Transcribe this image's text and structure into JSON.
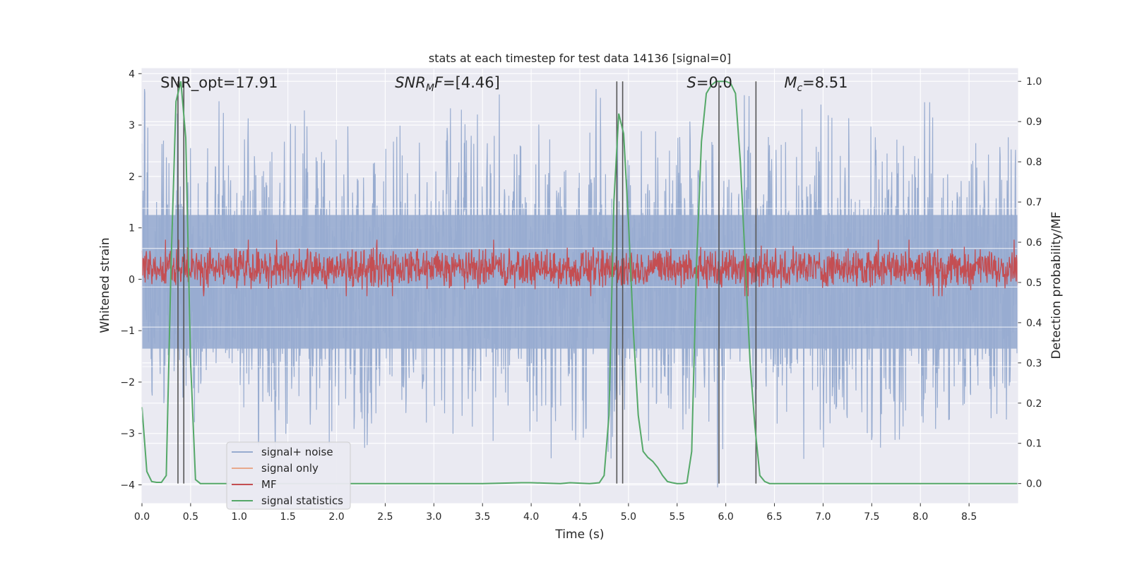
{
  "chart_data": {
    "type": "line",
    "title": "stats at each timestep for test data 14136 [signal=0]",
    "xlabel": "Time (s)",
    "ylabel": "Whitened strain",
    "y2label": "Detection probability/MF",
    "xlim": [
      0.0,
      9.0
    ],
    "ylim": [
      -4.35,
      4.1
    ],
    "y2lim": [
      -0.048,
      1.032
    ],
    "x_ticks": [
      "0.0",
      "0.5",
      "1.0",
      "1.5",
      "2.0",
      "2.5",
      "3.0",
      "3.5",
      "4.0",
      "4.5",
      "5.0",
      "5.5",
      "6.0",
      "6.5",
      "7.0",
      "7.5",
      "8.0",
      "8.5"
    ],
    "y_ticks": [
      4,
      3,
      2,
      1,
      0,
      -1,
      -2,
      -3,
      -4
    ],
    "y_tick_labels": [
      "4",
      "3",
      "2",
      "1",
      "0",
      "−1",
      "−2",
      "−3",
      "−4"
    ],
    "y2_ticks": [
      "1.0",
      "0.9",
      "0.8",
      "0.7",
      "0.6",
      "0.5",
      "0.4",
      "0.3",
      "0.2",
      "0.1",
      "0.0"
    ],
    "grid": true,
    "legend_position": "lower-left",
    "annotations": [
      {
        "id": "snr_opt",
        "parts": [
          {
            "t": "SNR_opt=17.91",
            "s": "n"
          }
        ],
        "x": 0.19
      },
      {
        "id": "snr_mf",
        "parts": [
          {
            "t": "SNR",
            "s": "i"
          },
          {
            "t": "M",
            "s": "sub"
          },
          {
            "t": "F",
            "s": "i"
          },
          {
            "t": "=[4.46]",
            "s": "n"
          }
        ],
        "x": 2.6
      },
      {
        "id": "s_val",
        "parts": [
          {
            "t": "S",
            "s": "i"
          },
          {
            "t": "=0.0",
            "s": "n"
          }
        ],
        "x": 5.6
      },
      {
        "id": "mc_val",
        "parts": [
          {
            "t": "M",
            "s": "i"
          },
          {
            "t": "c",
            "s": "sub"
          },
          {
            "t": "=8.51",
            "s": "n"
          }
        ],
        "x": 6.6
      }
    ],
    "vlines": [
      0.37,
      0.43,
      4.88,
      4.94,
      5.93,
      6.31
    ],
    "series": [
      {
        "name": "signal+ noise",
        "color": "#98acd0",
        "kind": "noise",
        "amplitude": 1.3,
        "spike_max": 3.7
      },
      {
        "name": "signal only",
        "color": "#e8a98c",
        "kind": "flat",
        "value": 0.0
      },
      {
        "name": "MF",
        "color": "#c44e52",
        "kind": "band",
        "center": 0.22,
        "amplitude": 0.22
      },
      {
        "name": "signal statistics",
        "color": "#55a868",
        "kind": "points",
        "axis": "y2",
        "x": [
          0.0,
          0.05,
          0.1,
          0.15,
          0.2,
          0.25,
          0.3,
          0.35,
          0.4,
          0.45,
          0.5,
          0.55,
          0.6,
          0.65,
          0.7,
          1.0,
          2.0,
          3.0,
          3.5,
          3.9,
          4.0,
          4.3,
          4.4,
          4.6,
          4.7,
          4.75,
          4.8,
          4.85,
          4.9,
          4.95,
          5.0,
          5.05,
          5.1,
          5.15,
          5.2,
          5.25,
          5.3,
          5.35,
          5.4,
          5.45,
          5.5,
          5.55,
          5.6,
          5.65,
          5.7,
          5.75,
          5.8,
          5.85,
          5.9,
          5.95,
          6.0,
          6.05,
          6.1,
          6.15,
          6.2,
          6.25,
          6.3,
          6.35,
          6.4,
          6.45,
          6.5,
          6.55,
          6.6,
          6.7,
          7.0,
          8.0,
          9.0
        ],
        "y": [
          0.19,
          0.03,
          0.005,
          0.003,
          0.003,
          0.02,
          0.55,
          0.95,
          1.0,
          0.86,
          0.3,
          0.01,
          0.0,
          0.0,
          0.0,
          0.0,
          0.0,
          0.0,
          0.0,
          0.002,
          0.002,
          0.0,
          0.002,
          0.0,
          0.002,
          0.02,
          0.17,
          0.7,
          0.92,
          0.87,
          0.65,
          0.38,
          0.17,
          0.08,
          0.065,
          0.055,
          0.04,
          0.02,
          0.005,
          0.002,
          0.0,
          0.0,
          0.002,
          0.08,
          0.55,
          0.85,
          0.97,
          0.99,
          1.0,
          1.0,
          1.0,
          0.995,
          0.97,
          0.8,
          0.55,
          0.3,
          0.14,
          0.02,
          0.005,
          0.0,
          0.0,
          0.0,
          0.0,
          0.0,
          0.0,
          0.0,
          0.0
        ]
      }
    ]
  }
}
